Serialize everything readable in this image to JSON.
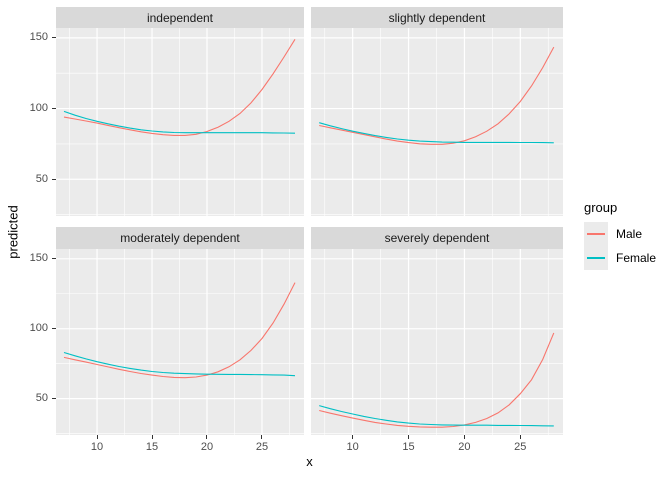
{
  "chart_data": {
    "type": "line",
    "title": "",
    "xlabel": "x",
    "ylabel": "predicted",
    "xlim": [
      6.27,
      28.82
    ],
    "ylim": [
      24,
      157
    ],
    "x_ticks": [
      10,
      15,
      20,
      25
    ],
    "y_ticks": [
      150,
      100,
      50
    ],
    "x_minor_ticks": [
      7.5,
      12.5,
      17.5,
      22.5,
      27.5
    ],
    "y_minor_ticks": [
      125,
      75,
      25
    ],
    "grid": "on",
    "legend": {
      "title": "group",
      "position": "right",
      "entries": [
        {
          "label": "Male",
          "color": "#F8766D"
        },
        {
          "label": "Female",
          "color": "#00BFC4"
        }
      ]
    },
    "facets": [
      {
        "title": "independent",
        "series": [
          {
            "name": "Male",
            "color": "#F8766D",
            "points": [
              [
                7,
                94
              ],
              [
                8,
                92.6
              ],
              [
                9,
                91.2
              ],
              [
                10,
                89.7
              ],
              [
                11,
                88.1
              ],
              [
                12,
                86.5
              ],
              [
                13,
                85
              ],
              [
                14,
                83.6
              ],
              [
                15,
                82.4
              ],
              [
                16,
                81.5
              ],
              [
                17,
                81
              ],
              [
                18,
                81
              ],
              [
                19,
                81.8
              ],
              [
                20,
                83.8
              ],
              [
                21,
                86.8
              ],
              [
                22,
                91
              ],
              [
                23,
                96.5
              ],
              [
                24,
                104
              ],
              [
                25,
                113.5
              ],
              [
                26,
                124.5
              ],
              [
                27,
                136.5
              ],
              [
                28,
                149
              ]
            ]
          },
          {
            "name": "Female",
            "color": "#00BFC4",
            "points": [
              [
                7,
                98
              ],
              [
                8,
                95.3
              ],
              [
                9,
                93
              ],
              [
                10,
                91
              ],
              [
                11,
                89.2
              ],
              [
                12,
                87.6
              ],
              [
                13,
                86.2
              ],
              [
                14,
                85
              ],
              [
                15,
                84.1
              ],
              [
                16,
                83.5
              ],
              [
                17,
                83.1
              ],
              [
                18,
                82.9
              ],
              [
                19,
                82.9
              ],
              [
                20,
                82.9
              ],
              [
                21,
                82.9
              ],
              [
                22,
                82.9
              ],
              [
                23,
                82.9
              ],
              [
                24,
                82.9
              ],
              [
                25,
                82.9
              ],
              [
                26,
                82.8
              ],
              [
                27,
                82.7
              ],
              [
                28,
                82.6
              ]
            ]
          }
        ]
      },
      {
        "title": "slightly dependent",
        "series": [
          {
            "name": "Male",
            "color": "#F8766D",
            "points": [
              [
                7,
                88
              ],
              [
                8,
                86.4
              ],
              [
                9,
                84.8
              ],
              [
                10,
                83.2
              ],
              [
                11,
                81.6
              ],
              [
                12,
                80
              ],
              [
                13,
                78.4
              ],
              [
                14,
                77
              ],
              [
                15,
                75.9
              ],
              [
                16,
                75.1
              ],
              [
                17,
                74.7
              ],
              [
                18,
                74.7
              ],
              [
                19,
                75.5
              ],
              [
                20,
                77.2
              ],
              [
                21,
                80
              ],
              [
                22,
                84
              ],
              [
                23,
                89.2
              ],
              [
                24,
                96.2
              ],
              [
                25,
                105
              ],
              [
                26,
                116
              ],
              [
                27,
                129
              ],
              [
                28,
                143.5
              ]
            ]
          },
          {
            "name": "Female",
            "color": "#00BFC4",
            "points": [
              [
                7,
                90
              ],
              [
                8,
                87.8
              ],
              [
                9,
                85.8
              ],
              [
                10,
                84
              ],
              [
                11,
                82.4
              ],
              [
                12,
                80.9
              ],
              [
                13,
                79.6
              ],
              [
                14,
                78.5
              ],
              [
                15,
                77.6
              ],
              [
                16,
                77
              ],
              [
                17,
                76.6
              ],
              [
                18,
                76.3
              ],
              [
                19,
                76.2
              ],
              [
                20,
                76.1
              ],
              [
                21,
                76.1
              ],
              [
                22,
                76.1
              ],
              [
                23,
                76.1
              ],
              [
                24,
                76.1
              ],
              [
                25,
                76
              ],
              [
                26,
                76
              ],
              [
                27,
                75.9
              ],
              [
                28,
                75.8
              ]
            ]
          }
        ]
      },
      {
        "title": "moderately dependent",
        "series": [
          {
            "name": "Male",
            "color": "#F8766D",
            "points": [
              [
                7,
                79.5
              ],
              [
                8,
                77.8
              ],
              [
                9,
                76.1
              ],
              [
                10,
                74.4
              ],
              [
                11,
                72.7
              ],
              [
                12,
                71
              ],
              [
                13,
                69.4
              ],
              [
                14,
                68
              ],
              [
                15,
                66.8
              ],
              [
                16,
                65.8
              ],
              [
                17,
                65.2
              ],
              [
                18,
                65
              ],
              [
                19,
                65.5
              ],
              [
                20,
                66.8
              ],
              [
                21,
                69.2
              ],
              [
                22,
                72.8
              ],
              [
                23,
                77.8
              ],
              [
                24,
                84.5
              ],
              [
                25,
                93
              ],
              [
                26,
                104
              ],
              [
                27,
                117.5
              ],
              [
                28,
                133
              ]
            ]
          },
          {
            "name": "Female",
            "color": "#00BFC4",
            "points": [
              [
                7,
                83
              ],
              [
                8,
                80.6
              ],
              [
                9,
                78.4
              ],
              [
                10,
                76.4
              ],
              [
                11,
                74.6
              ],
              [
                12,
                73
              ],
              [
                13,
                71.6
              ],
              [
                14,
                70.4
              ],
              [
                15,
                69.4
              ],
              [
                16,
                68.7
              ],
              [
                17,
                68.2
              ],
              [
                18,
                67.9
              ],
              [
                19,
                67.7
              ],
              [
                20,
                67.5
              ],
              [
                21,
                67.4
              ],
              [
                22,
                67.3
              ],
              [
                23,
                67.3
              ],
              [
                24,
                67.2
              ],
              [
                25,
                67.1
              ],
              [
                26,
                67
              ],
              [
                27,
                66.8
              ],
              [
                28,
                66.4
              ]
            ]
          }
        ]
      },
      {
        "title": "severely dependent",
        "series": [
          {
            "name": "Male",
            "color": "#F8766D",
            "points": [
              [
                7,
                41.5
              ],
              [
                8,
                39.6
              ],
              [
                9,
                37.8
              ],
              [
                10,
                36.1
              ],
              [
                11,
                34.5
              ],
              [
                12,
                33
              ],
              [
                13,
                31.9
              ],
              [
                14,
                30.9
              ],
              [
                15,
                30.2
              ],
              [
                16,
                29.8
              ],
              [
                17,
                29.6
              ],
              [
                18,
                29.6
              ],
              [
                19,
                30.1
              ],
              [
                20,
                31.2
              ],
              [
                21,
                33
              ],
              [
                22,
                35.8
              ],
              [
                23,
                39.8
              ],
              [
                24,
                45.5
              ],
              [
                25,
                53.5
              ],
              [
                26,
                63.5
              ],
              [
                27,
                78
              ],
              [
                28,
                97
              ]
            ]
          },
          {
            "name": "Female",
            "color": "#00BFC4",
            "points": [
              [
                7,
                45
              ],
              [
                8,
                42.8
              ],
              [
                9,
                40.8
              ],
              [
                10,
                39
              ],
              [
                11,
                37.3
              ],
              [
                12,
                35.8
              ],
              [
                13,
                34.5
              ],
              [
                14,
                33.4
              ],
              [
                15,
                32.5
              ],
              [
                16,
                31.9
              ],
              [
                17,
                31.5
              ],
              [
                18,
                31.2
              ],
              [
                19,
                31.1
              ],
              [
                20,
                31
              ],
              [
                21,
                31
              ],
              [
                22,
                31
              ],
              [
                23,
                30.9
              ],
              [
                24,
                30.9
              ],
              [
                25,
                30.8
              ],
              [
                26,
                30.7
              ],
              [
                27,
                30.6
              ],
              [
                28,
                30.5
              ]
            ]
          }
        ]
      }
    ],
    "theme": {
      "panel_background": "#ebebeb",
      "strip_background": "#d9d9d9",
      "grid_color": "#ffffff",
      "tick_label_color": "#4d4d4d",
      "figure_background": "#ffffff"
    }
  }
}
